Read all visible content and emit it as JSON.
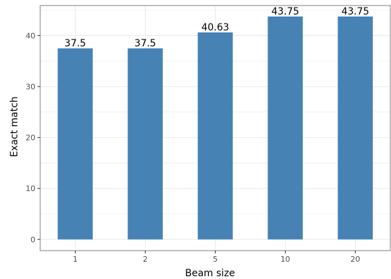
{
  "chart_data": {
    "type": "bar",
    "categories": [
      "1",
      "2",
      "5",
      "10",
      "20"
    ],
    "values": [
      37.5,
      37.5,
      40.63,
      43.75,
      43.75
    ],
    "value_labels": [
      "37.5",
      "37.5",
      "40.63",
      "43.75",
      "43.75"
    ],
    "title": "",
    "xlabel": "Beam size",
    "ylabel": "Exact match",
    "ylim": [
      -2.2,
      45.9
    ],
    "yticks": [
      0,
      10,
      20,
      30,
      40
    ],
    "ytick_labels": [
      "0",
      "10",
      "20",
      "30",
      "40"
    ],
    "grid": true,
    "bar_color": "#4682b4",
    "grid_color": "#ebebeb",
    "panel_border_color": "#7f7f7f"
  }
}
